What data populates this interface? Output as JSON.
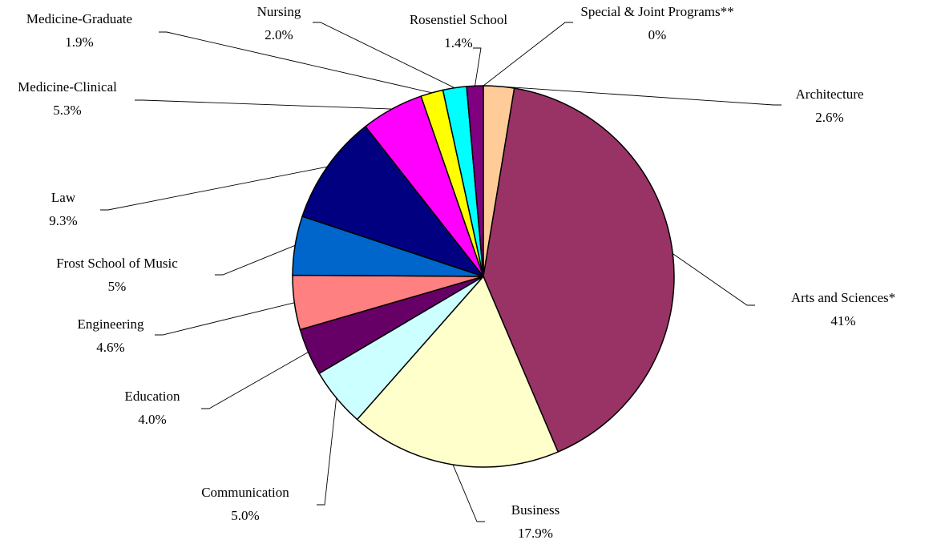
{
  "chart_data": {
    "type": "pie",
    "slices": [
      {
        "label": "Architecture",
        "value_text": "2.6%",
        "value": 2.6,
        "color": "#FFCC99"
      },
      {
        "label": "Arts and Sciences*",
        "value_text": "41%",
        "value": 41,
        "color": "#993366"
      },
      {
        "label": "Business",
        "value_text": "17.9%",
        "value": 17.9,
        "color": "#FFFFCC"
      },
      {
        "label": "Communication",
        "value_text": "5.0%",
        "value": 5.0,
        "color": "#CCFFFF"
      },
      {
        "label": "Education",
        "value_text": "4.0%",
        "value": 4.0,
        "color": "#660066"
      },
      {
        "label": "Engineering",
        "value_text": "4.6%",
        "value": 4.6,
        "color": "#FF8080"
      },
      {
        "label": "Frost School of Music",
        "value_text": "5%",
        "value": 5,
        "color": "#0066CC"
      },
      {
        "label": "Law",
        "value_text": "9.3%",
        "value": 9.3,
        "color": "#000080"
      },
      {
        "label": "Medicine-Clinical",
        "value_text": "5.3%",
        "value": 5.3,
        "color": "#FF00FF"
      },
      {
        "label": "Medicine-Graduate",
        "value_text": "1.9%",
        "value": 1.9,
        "color": "#FFFF00"
      },
      {
        "label": "Nursing",
        "value_text": "2.0%",
        "value": 2.0,
        "color": "#00FFFF"
      },
      {
        "label": "Rosenstiel School",
        "value_text": "1.4%",
        "value": 1.4,
        "color": "#800080"
      },
      {
        "label": "Special & Joint Programs**",
        "value_text": "0%",
        "value": 0,
        "color": "#FFFFFF"
      }
    ]
  }
}
